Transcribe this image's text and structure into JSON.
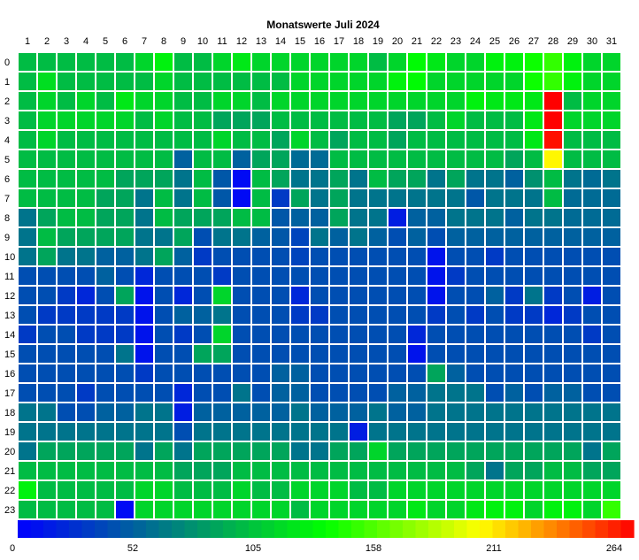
{
  "chart_data": {
    "type": "heatmap",
    "title": "Monatswerte Juli 2024",
    "x": [
      "1",
      "2",
      "3",
      "4",
      "5",
      "6",
      "7",
      "8",
      "9",
      "10",
      "11",
      "12",
      "13",
      "14",
      "15",
      "16",
      "17",
      "18",
      "19",
      "20",
      "21",
      "22",
      "23",
      "24",
      "25",
      "26",
      "27",
      "28",
      "29",
      "30",
      "31"
    ],
    "y": [
      "0",
      "1",
      "2",
      "3",
      "4",
      "5",
      "6",
      "7",
      "8",
      "9",
      "10",
      "11",
      "12",
      "13",
      "14",
      "15",
      "16",
      "17",
      "18",
      "19",
      "20",
      "21",
      "22",
      "23"
    ],
    "xlabel": "",
    "ylabel": "",
    "colorbar": {
      "min": 0,
      "max": 264,
      "ticks": [
        "0",
        "52",
        "105",
        "158",
        "211",
        "264"
      ],
      "colors": [
        "#0000ff",
        "#008080",
        "#00ff00",
        "#ffff00",
        "#ff0000"
      ]
    },
    "values": [
      [
        97,
        97,
        97,
        97,
        97,
        97,
        110,
        125,
        97,
        97,
        110,
        120,
        110,
        110,
        110,
        110,
        110,
        110,
        97,
        110,
        130,
        120,
        110,
        110,
        125,
        125,
        135,
        145,
        125,
        110,
        110
      ],
      [
        97,
        115,
        97,
        97,
        97,
        97,
        97,
        110,
        97,
        97,
        97,
        97,
        97,
        97,
        110,
        110,
        110,
        110,
        110,
        125,
        130,
        110,
        110,
        110,
        110,
        110,
        135,
        145,
        125,
        110,
        110
      ],
      [
        97,
        110,
        97,
        110,
        97,
        120,
        110,
        110,
        97,
        97,
        110,
        110,
        97,
        110,
        110,
        110,
        110,
        110,
        110,
        110,
        110,
        110,
        110,
        125,
        120,
        120,
        120,
        264,
        97,
        110,
        110
      ],
      [
        97,
        110,
        110,
        110,
        110,
        110,
        97,
        110,
        97,
        97,
        85,
        85,
        85,
        97,
        97,
        97,
        97,
        97,
        97,
        85,
        85,
        97,
        110,
        97,
        97,
        97,
        120,
        264,
        110,
        110,
        110
      ],
      [
        97,
        110,
        97,
        97,
        97,
        97,
        97,
        97,
        97,
        97,
        110,
        97,
        97,
        85,
        110,
        97,
        85,
        97,
        97,
        85,
        97,
        97,
        97,
        97,
        97,
        97,
        120,
        260,
        97,
        97,
        97
      ],
      [
        97,
        97,
        97,
        97,
        97,
        97,
        97,
        97,
        50,
        97,
        97,
        50,
        85,
        85,
        55,
        55,
        97,
        97,
        97,
        97,
        97,
        97,
        97,
        97,
        97,
        85,
        97,
        200,
        97,
        97,
        97
      ],
      [
        97,
        97,
        97,
        97,
        97,
        85,
        85,
        85,
        60,
        97,
        45,
        5,
        97,
        85,
        60,
        60,
        85,
        60,
        97,
        85,
        85,
        60,
        85,
        60,
        60,
        50,
        75,
        97,
        60,
        55,
        60
      ],
      [
        97,
        97,
        97,
        97,
        85,
        85,
        60,
        97,
        60,
        97,
        45,
        5,
        97,
        30,
        85,
        60,
        85,
        60,
        60,
        60,
        60,
        60,
        60,
        45,
        60,
        60,
        60,
        97,
        55,
        55,
        55
      ],
      [
        60,
        85,
        97,
        97,
        85,
        85,
        60,
        97,
        85,
        85,
        85,
        97,
        97,
        45,
        50,
        50,
        85,
        60,
        60,
        15,
        50,
        50,
        60,
        60,
        60,
        50,
        60,
        60,
        55,
        55,
        55
      ],
      [
        60,
        97,
        85,
        85,
        85,
        85,
        60,
        60,
        85,
        40,
        60,
        60,
        50,
        45,
        35,
        60,
        50,
        60,
        50,
        40,
        50,
        40,
        50,
        50,
        50,
        50,
        50,
        50,
        50,
        50,
        50
      ],
      [
        60,
        85,
        60,
        60,
        50,
        50,
        60,
        85,
        50,
        30,
        40,
        40,
        40,
        40,
        35,
        40,
        40,
        40,
        40,
        40,
        40,
        10,
        40,
        40,
        30,
        40,
        40,
        40,
        40,
        40,
        40
      ],
      [
        40,
        40,
        40,
        40,
        50,
        40,
        20,
        40,
        40,
        40,
        30,
        40,
        40,
        40,
        40,
        40,
        40,
        40,
        40,
        40,
        40,
        10,
        30,
        40,
        40,
        40,
        40,
        40,
        40,
        40,
        40
      ],
      [
        40,
        40,
        30,
        20,
        40,
        85,
        10,
        40,
        20,
        40,
        110,
        40,
        40,
        40,
        20,
        40,
        40,
        40,
        40,
        40,
        40,
        10,
        40,
        40,
        50,
        30,
        60,
        30,
        40,
        15,
        40
      ],
      [
        40,
        30,
        30,
        30,
        30,
        30,
        10,
        40,
        50,
        50,
        60,
        40,
        40,
        40,
        30,
        30,
        40,
        40,
        40,
        40,
        40,
        30,
        40,
        30,
        40,
        30,
        30,
        20,
        30,
        40,
        40
      ],
      [
        30,
        40,
        40,
        30,
        30,
        30,
        10,
        40,
        30,
        40,
        110,
        40,
        40,
        40,
        40,
        40,
        40,
        40,
        40,
        40,
        20,
        40,
        40,
        40,
        40,
        40,
        40,
        40,
        40,
        30,
        40
      ],
      [
        40,
        40,
        40,
        40,
        40,
        60,
        10,
        40,
        40,
        85,
        85,
        40,
        40,
        40,
        40,
        40,
        40,
        40,
        40,
        40,
        10,
        40,
        40,
        40,
        40,
        40,
        40,
        40,
        40,
        40,
        40
      ],
      [
        40,
        40,
        40,
        40,
        40,
        40,
        30,
        40,
        40,
        40,
        40,
        40,
        40,
        50,
        50,
        40,
        40,
        40,
        40,
        40,
        40,
        85,
        50,
        40,
        40,
        40,
        40,
        40,
        40,
        40,
        40
      ],
      [
        40,
        40,
        40,
        30,
        40,
        40,
        40,
        40,
        20,
        40,
        40,
        60,
        40,
        50,
        50,
        40,
        40,
        40,
        40,
        50,
        50,
        60,
        60,
        60,
        40,
        50,
        40,
        50,
        50,
        40,
        40
      ],
      [
        60,
        60,
        40,
        40,
        50,
        50,
        60,
        60,
        15,
        50,
        50,
        50,
        50,
        50,
        60,
        50,
        50,
        50,
        60,
        50,
        50,
        60,
        60,
        60,
        60,
        60,
        60,
        60,
        60,
        60,
        60
      ],
      [
        60,
        60,
        60,
        60,
        60,
        60,
        60,
        60,
        40,
        60,
        60,
        60,
        60,
        60,
        60,
        60,
        60,
        15,
        60,
        60,
        60,
        60,
        60,
        60,
        60,
        60,
        60,
        60,
        60,
        60,
        60
      ],
      [
        60,
        85,
        85,
        85,
        85,
        85,
        60,
        85,
        60,
        85,
        85,
        85,
        85,
        85,
        60,
        60,
        85,
        85,
        110,
        85,
        85,
        85,
        85,
        85,
        85,
        85,
        85,
        85,
        85,
        60,
        85
      ],
      [
        97,
        97,
        97,
        97,
        97,
        97,
        97,
        97,
        85,
        85,
        85,
        97,
        97,
        97,
        97,
        97,
        97,
        97,
        97,
        97,
        97,
        97,
        97,
        85,
        60,
        85,
        85,
        97,
        97,
        85,
        85
      ],
      [
        125,
        97,
        97,
        97,
        97,
        97,
        110,
        110,
        97,
        97,
        97,
        110,
        97,
        97,
        110,
        110,
        110,
        97,
        97,
        110,
        110,
        110,
        110,
        110,
        110,
        110,
        110,
        110,
        110,
        110,
        110
      ],
      [
        97,
        97,
        97,
        97,
        97,
        5,
        110,
        110,
        110,
        110,
        110,
        110,
        110,
        110,
        97,
        110,
        110,
        110,
        110,
        110,
        120,
        110,
        110,
        120,
        125,
        125,
        110,
        125,
        125,
        110,
        145
      ]
    ]
  }
}
